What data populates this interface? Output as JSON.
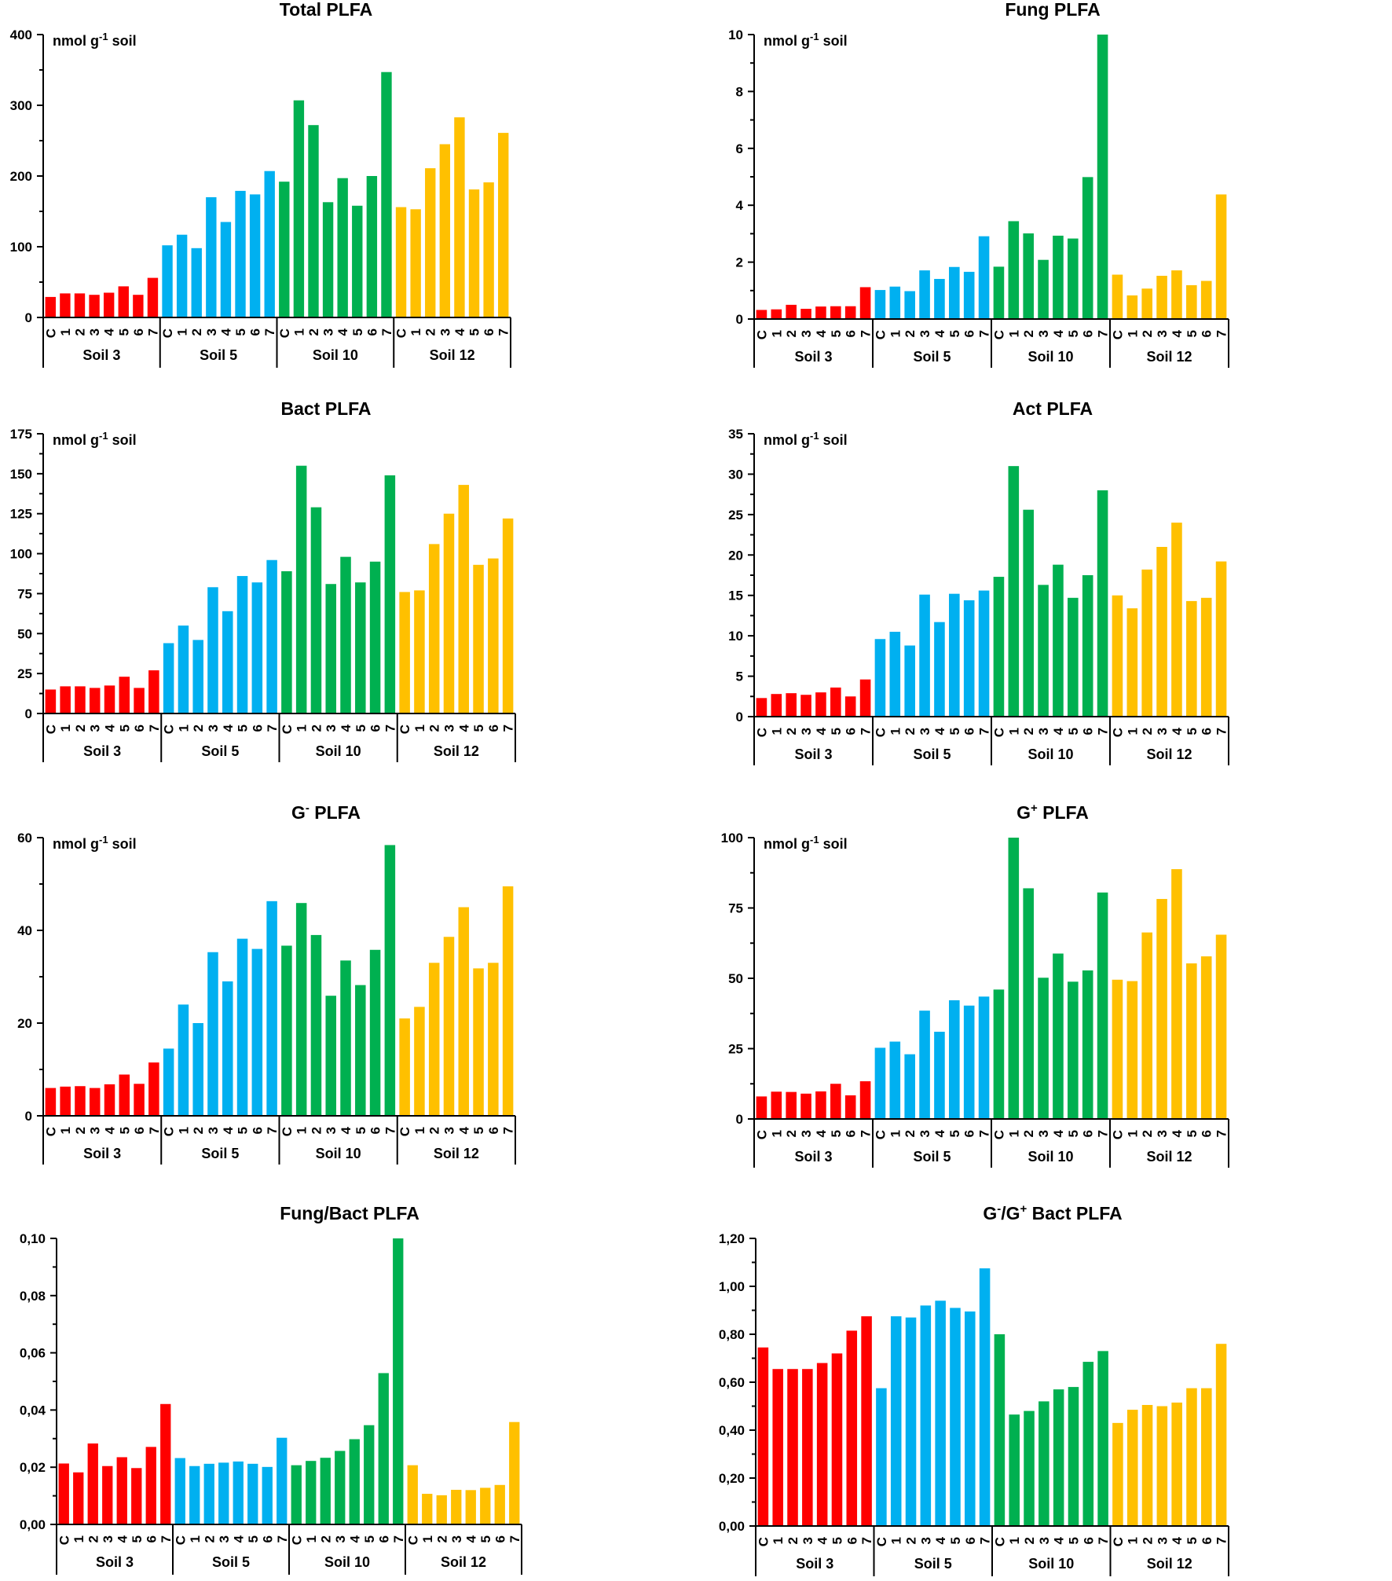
{
  "legend_groups": [
    "Soil 3",
    "Soil 5",
    "Soil 10",
    "Soil 12"
  ],
  "colors": {
    "Soil 3": "#ff0000",
    "Soil 5": "#00b0f0",
    "Soil 10": "#00b050",
    "Soil 12": "#ffc000"
  },
  "chart_data": [
    {
      "type": "bar",
      "title": "Total PLFA",
      "unit": "nmol g-1 soil",
      "categories": [
        "C",
        "1",
        "2",
        "3",
        "4",
        "5",
        "6",
        "7"
      ],
      "groups": [
        "Soil 3",
        "Soil 5",
        "Soil 10",
        "Soil 12"
      ],
      "ylim": [
        0,
        400
      ],
      "yticks": [
        "0",
        "100",
        "200",
        "300",
        "400"
      ],
      "series": [
        {
          "name": "Soil 3",
          "values": [
            29,
            34,
            34,
            32,
            35,
            44,
            32,
            56
          ]
        },
        {
          "name": "Soil 5",
          "values": [
            102,
            117,
            98,
            170,
            135,
            179,
            174,
            207
          ]
        },
        {
          "name": "Soil 10",
          "values": [
            192,
            307,
            272,
            163,
            197,
            158,
            200,
            347
          ]
        },
        {
          "name": "Soil 12",
          "values": [
            156,
            153,
            211,
            245,
            283,
            181,
            191,
            261
          ]
        }
      ]
    },
    {
      "type": "bar",
      "title": "Fung PLFA",
      "unit": "nmol g-1 soil",
      "categories": [
        "C",
        "1",
        "2",
        "3",
        "4",
        "5",
        "6",
        "7"
      ],
      "groups": [
        "Soil 3",
        "Soil 5",
        "Soil 10",
        "Soil 12"
      ],
      "ylim": [
        0,
        10
      ],
      "yticks": [
        "0",
        "2",
        "4",
        "6",
        "8",
        "10"
      ],
      "series": [
        {
          "name": "Soil 3",
          "values": [
            0.32,
            0.34,
            0.5,
            0.36,
            0.44,
            0.45,
            0.45,
            1.12
          ]
        },
        {
          "name": "Soil 5",
          "values": [
            1.02,
            1.14,
            0.98,
            1.71,
            1.41,
            1.83,
            1.66,
            2.91
          ]
        },
        {
          "name": "Soil 10",
          "values": [
            1.84,
            3.44,
            3.01,
            2.08,
            2.93,
            2.83,
            4.99,
            10.0
          ]
        },
        {
          "name": "Soil 12",
          "values": [
            1.56,
            0.83,
            1.07,
            1.52,
            1.71,
            1.19,
            1.34,
            4.38
          ]
        }
      ]
    },
    {
      "type": "bar",
      "title": "Bact PLFA",
      "unit": "nmol g-1 soil",
      "categories": [
        "C",
        "1",
        "2",
        "3",
        "4",
        "5",
        "6",
        "7"
      ],
      "groups": [
        "Soil 3",
        "Soil 5",
        "Soil 10",
        "Soil 12"
      ],
      "ylim": [
        0,
        175
      ],
      "yticks": [
        "0",
        "25",
        "50",
        "75",
        "100",
        "125",
        "150",
        "175"
      ],
      "series": [
        {
          "name": "Soil 3",
          "values": [
            15,
            17,
            17,
            16,
            17.5,
            23,
            16,
            27
          ]
        },
        {
          "name": "Soil 5",
          "values": [
            44,
            55,
            46,
            79,
            64,
            86,
            82,
            96
          ]
        },
        {
          "name": "Soil 10",
          "values": [
            89,
            155,
            129,
            81,
            98,
            82,
            95,
            149
          ]
        },
        {
          "name": "Soil 12",
          "values": [
            76,
            77,
            106,
            125,
            143,
            93,
            97,
            122
          ]
        }
      ]
    },
    {
      "type": "bar",
      "title": "Act PLFA",
      "unit": "nmol g-1 soil",
      "categories": [
        "C",
        "1",
        "2",
        "3",
        "4",
        "5",
        "6",
        "7"
      ],
      "groups": [
        "Soil 3",
        "Soil 5",
        "Soil 10",
        "Soil 12"
      ],
      "ylim": [
        0,
        35
      ],
      "yticks": [
        "0",
        "5",
        "10",
        "15",
        "20",
        "25",
        "30",
        "35"
      ],
      "series": [
        {
          "name": "Soil 3",
          "values": [
            2.3,
            2.8,
            2.9,
            2.7,
            3.0,
            3.6,
            2.5,
            4.6
          ]
        },
        {
          "name": "Soil 5",
          "values": [
            9.6,
            10.5,
            8.8,
            15.1,
            11.7,
            15.2,
            14.4,
            15.6
          ]
        },
        {
          "name": "Soil 10",
          "values": [
            17.3,
            31.0,
            25.6,
            16.3,
            18.8,
            14.7,
            17.5,
            28.0
          ]
        },
        {
          "name": "Soil 12",
          "values": [
            15.0,
            13.4,
            18.2,
            21.0,
            24.0,
            14.3,
            14.7,
            19.2
          ]
        }
      ]
    },
    {
      "type": "bar",
      "title": "G- PLFA",
      "title_main": "G",
      "title_sup": "-",
      "title_rest": " PLFA",
      "unit": "nmol g-1 soil",
      "categories": [
        "C",
        "1",
        "2",
        "3",
        "4",
        "5",
        "6",
        "7"
      ],
      "groups": [
        "Soil 3",
        "Soil 5",
        "Soil 10",
        "Soil 12"
      ],
      "ylim": [
        0,
        60
      ],
      "yticks": [
        "0",
        "20",
        "40",
        "60"
      ],
      "series": [
        {
          "name": "Soil 3",
          "values": [
            6.0,
            6.3,
            6.4,
            6.0,
            6.8,
            8.9,
            6.9,
            11.5
          ]
        },
        {
          "name": "Soil 5",
          "values": [
            14.5,
            24.0,
            20.0,
            35.3,
            29.0,
            38.2,
            36.0,
            46.3
          ]
        },
        {
          "name": "Soil 10",
          "values": [
            36.7,
            45.9,
            39.0,
            25.9,
            33.5,
            28.2,
            35.8,
            58.4
          ]
        },
        {
          "name": "Soil 12",
          "values": [
            21.0,
            23.5,
            33.0,
            38.6,
            45.0,
            31.8,
            33.0,
            49.5
          ]
        }
      ]
    },
    {
      "type": "bar",
      "title": "G+ PLFA",
      "title_main": "G",
      "title_sup": "+",
      "title_rest": " PLFA",
      "unit": "nmol g-1 soil",
      "categories": [
        "C",
        "1",
        "2",
        "3",
        "4",
        "5",
        "6",
        "7"
      ],
      "groups": [
        "Soil 3",
        "Soil 5",
        "Soil 10",
        "Soil 12"
      ],
      "ylim": [
        0,
        100
      ],
      "yticks": [
        "0",
        "25",
        "50",
        "75",
        "100"
      ],
      "series": [
        {
          "name": "Soil 3",
          "values": [
            8.0,
            9.7,
            9.6,
            9.0,
            9.8,
            12.5,
            8.4,
            13.4
          ]
        },
        {
          "name": "Soil 5",
          "values": [
            25.3,
            27.5,
            23.0,
            38.5,
            31.0,
            42.2,
            40.3,
            43.5
          ]
        },
        {
          "name": "Soil 10",
          "values": [
            46.0,
            100.0,
            82.0,
            50.2,
            58.8,
            48.8,
            52.8,
            80.5
          ]
        },
        {
          "name": "Soil 12",
          "values": [
            49.5,
            49.0,
            66.3,
            78.2,
            88.8,
            55.3,
            57.8,
            65.5
          ]
        }
      ]
    },
    {
      "type": "bar",
      "title": "Fung/Bact PLFA",
      "unit": "",
      "categories": [
        "C",
        "1",
        "2",
        "3",
        "4",
        "5",
        "6",
        "7"
      ],
      "groups": [
        "Soil 3",
        "Soil 5",
        "Soil 10",
        "Soil 12"
      ],
      "ylim": [
        0,
        0.1
      ],
      "yticks": [
        "0,00",
        "0,02",
        "0,04",
        "0,06",
        "0,08",
        "0,10"
      ],
      "series": [
        {
          "name": "Soil 3",
          "values": [
            0.0213,
            0.0182,
            0.0283,
            0.0204,
            0.0235,
            0.0197,
            0.0271,
            0.0421
          ]
        },
        {
          "name": "Soil 5",
          "values": [
            0.0232,
            0.0204,
            0.0212,
            0.0216,
            0.022,
            0.0212,
            0.0201,
            0.0303
          ]
        },
        {
          "name": "Soil 10",
          "values": [
            0.0207,
            0.0222,
            0.0233,
            0.0257,
            0.0298,
            0.0347,
            0.0529,
            0.1
          ]
        },
        {
          "name": "Soil 12",
          "values": [
            0.0207,
            0.0107,
            0.0102,
            0.0121,
            0.012,
            0.0128,
            0.0138,
            0.0358
          ]
        }
      ]
    },
    {
      "type": "bar",
      "title": "G-/G+ Bact PLFA",
      "title_main": "G",
      "title_sup": "-",
      "title_mid": "/G",
      "title_sup2": "+",
      "title_rest": " Bact PLFA",
      "unit": "",
      "categories": [
        "C",
        "1",
        "2",
        "3",
        "4",
        "5",
        "6",
        "7"
      ],
      "groups": [
        "Soil 3",
        "Soil 5",
        "Soil 10",
        "Soil 12"
      ],
      "ylim": [
        0,
        1.2
      ],
      "yticks": [
        "0,00",
        "0,20",
        "0,40",
        "0,60",
        "0,80",
        "1,00",
        "1,20"
      ],
      "series": [
        {
          "name": "Soil 3",
          "values": [
            0.745,
            0.655,
            0.655,
            0.655,
            0.68,
            0.72,
            0.815,
            0.875
          ]
        },
        {
          "name": "Soil 5",
          "values": [
            0.575,
            0.875,
            0.87,
            0.92,
            0.94,
            0.91,
            0.895,
            1.075
          ]
        },
        {
          "name": "Soil 10",
          "values": [
            0.8,
            0.465,
            0.48,
            0.52,
            0.57,
            0.58,
            0.685,
            0.73
          ]
        },
        {
          "name": "Soil 12",
          "values": [
            0.43,
            0.485,
            0.505,
            0.5,
            0.515,
            0.575,
            0.575,
            0.76
          ]
        }
      ]
    }
  ]
}
